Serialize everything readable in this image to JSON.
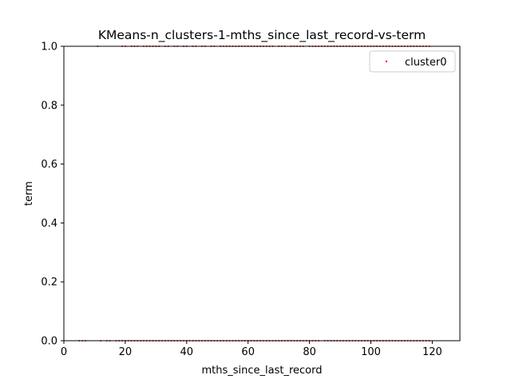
{
  "chart_data": {
    "type": "scatter",
    "title": "KMeans-n_clusters-1-mths_since_last_record-vs-term",
    "xlabel": "mths_since_last_record",
    "ylabel": "term",
    "xlim": [
      0,
      129
    ],
    "ylim": [
      0,
      1
    ],
    "xticks": [
      0,
      20,
      40,
      60,
      80,
      100,
      120
    ],
    "yticks": [
      0.0,
      0.2,
      0.4,
      0.6,
      0.8,
      1.0
    ],
    "xtick_labels": [
      "0",
      "20",
      "40",
      "60",
      "80",
      "100",
      "120"
    ],
    "ytick_labels": [
      "0.0",
      "0.2",
      "0.4",
      "0.6",
      "0.8",
      "1.0"
    ],
    "legend_position": "top-right",
    "series": [
      {
        "name": "cluster0",
        "color": "#ff0000",
        "points_y0_x": [
          5,
          6,
          7,
          12,
          14,
          15,
          17,
          18,
          19,
          20,
          21,
          22,
          23,
          24,
          25,
          26,
          27,
          28,
          29,
          30,
          31,
          32,
          33,
          34,
          35,
          36,
          37,
          38,
          39,
          40,
          41,
          42,
          43,
          44,
          45,
          46,
          47,
          48,
          49,
          50,
          51,
          52,
          53,
          54,
          55,
          56,
          57,
          58,
          59,
          60,
          61,
          62,
          63,
          64,
          65,
          66,
          67,
          68,
          69,
          70,
          71,
          72,
          73,
          74,
          75,
          76,
          77,
          78,
          79,
          80,
          81,
          82,
          83,
          85,
          86,
          87,
          88,
          89,
          90,
          91,
          92,
          93,
          94,
          95,
          96,
          97,
          98,
          99,
          100,
          101,
          102,
          103,
          104,
          105,
          106,
          107,
          108,
          109,
          110,
          111,
          112,
          113,
          114,
          115,
          116,
          117,
          118,
          119
        ],
        "points_y1_x": [
          11,
          19,
          20,
          22,
          23,
          24,
          26,
          27,
          28,
          29,
          30,
          31,
          33,
          34,
          36,
          37,
          39,
          40,
          42,
          43,
          45,
          46,
          48,
          49,
          51,
          52,
          53,
          54,
          55,
          56,
          57,
          58,
          59,
          60,
          61,
          62,
          63,
          64,
          65,
          66,
          67,
          68,
          70,
          71,
          72,
          74,
          75,
          76,
          77,
          78,
          80,
          81,
          82,
          83,
          84,
          85,
          86,
          87,
          88,
          89,
          90,
          91,
          92,
          93,
          94,
          95,
          96,
          97,
          98,
          99,
          100,
          101,
          102,
          103,
          104,
          105,
          106,
          107,
          108,
          109,
          110,
          111,
          112,
          113,
          114,
          115,
          116,
          117,
          118,
          119
        ]
      }
    ]
  }
}
